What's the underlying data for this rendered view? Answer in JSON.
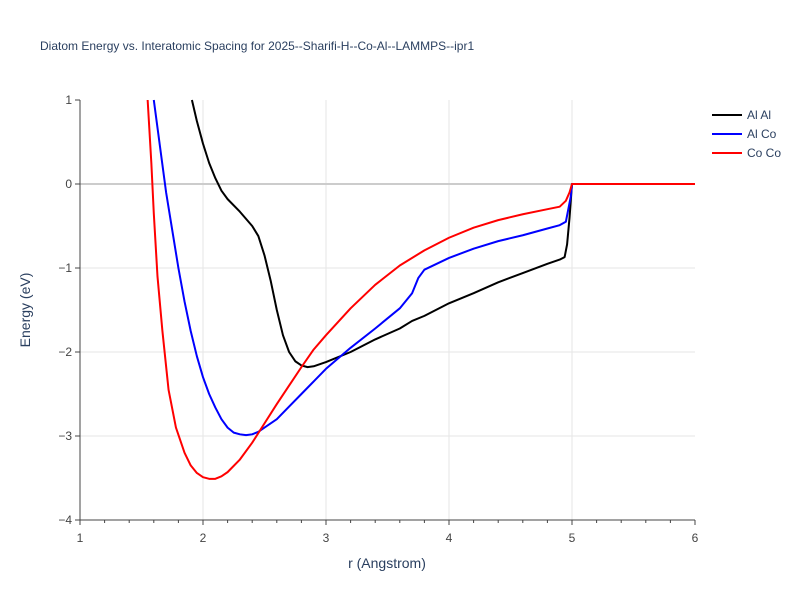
{
  "chart_data": {
    "type": "line",
    "title": "Diatom Energy vs. Interatomic Spacing for 2025--Sharifi-H--Co-Al--LAMMPS--ipr1",
    "xlabel": "r (Angstrom)",
    "ylabel": "Energy (eV)",
    "xlim": [
      1,
      6
    ],
    "ylim": [
      -4,
      1
    ],
    "x_ticks": [
      "1",
      "2",
      "3",
      "4",
      "5",
      "6"
    ],
    "y_ticks": [
      "1",
      "0",
      "−1",
      "−2",
      "−3",
      "−4"
    ],
    "grid": true,
    "legend_position": "top-right",
    "series": [
      {
        "name": "Al Al",
        "color": "#000000",
        "points": [
          [
            1.91,
            1.0
          ],
          [
            1.95,
            0.75
          ],
          [
            2.0,
            0.48
          ],
          [
            2.05,
            0.25
          ],
          [
            2.1,
            0.07
          ],
          [
            2.15,
            -0.08
          ],
          [
            2.2,
            -0.18
          ],
          [
            2.3,
            -0.33
          ],
          [
            2.4,
            -0.5
          ],
          [
            2.45,
            -0.62
          ],
          [
            2.5,
            -0.85
          ],
          [
            2.55,
            -1.15
          ],
          [
            2.6,
            -1.5
          ],
          [
            2.65,
            -1.8
          ],
          [
            2.7,
            -2.0
          ],
          [
            2.75,
            -2.11
          ],
          [
            2.8,
            -2.16
          ],
          [
            2.85,
            -2.18
          ],
          [
            2.9,
            -2.17
          ],
          [
            3.0,
            -2.12
          ],
          [
            3.2,
            -2.0
          ],
          [
            3.4,
            -1.85
          ],
          [
            3.6,
            -1.72
          ],
          [
            3.7,
            -1.63
          ],
          [
            3.8,
            -1.57
          ],
          [
            4.0,
            -1.42
          ],
          [
            4.2,
            -1.3
          ],
          [
            4.4,
            -1.17
          ],
          [
            4.6,
            -1.06
          ],
          [
            4.8,
            -0.95
          ],
          [
            4.9,
            -0.9
          ],
          [
            4.94,
            -0.87
          ],
          [
            4.96,
            -0.72
          ],
          [
            4.98,
            -0.4
          ],
          [
            4.99,
            -0.2
          ],
          [
            5.0,
            0.0
          ],
          [
            6.0,
            0.0
          ]
        ]
      },
      {
        "name": "Al Co",
        "color": "#0000ff",
        "points": [
          [
            1.6,
            1.0
          ],
          [
            1.65,
            0.45
          ],
          [
            1.7,
            -0.1
          ],
          [
            1.75,
            -0.55
          ],
          [
            1.8,
            -1.0
          ],
          [
            1.85,
            -1.4
          ],
          [
            1.9,
            -1.75
          ],
          [
            1.95,
            -2.05
          ],
          [
            2.0,
            -2.3
          ],
          [
            2.05,
            -2.5
          ],
          [
            2.1,
            -2.66
          ],
          [
            2.15,
            -2.8
          ],
          [
            2.2,
            -2.9
          ],
          [
            2.25,
            -2.96
          ],
          [
            2.3,
            -2.98
          ],
          [
            2.35,
            -2.99
          ],
          [
            2.4,
            -2.98
          ],
          [
            2.45,
            -2.95
          ],
          [
            2.5,
            -2.9
          ],
          [
            2.6,
            -2.8
          ],
          [
            2.7,
            -2.65
          ],
          [
            2.8,
            -2.5
          ],
          [
            2.9,
            -2.35
          ],
          [
            3.0,
            -2.2
          ],
          [
            3.2,
            -1.95
          ],
          [
            3.4,
            -1.72
          ],
          [
            3.6,
            -1.48
          ],
          [
            3.7,
            -1.3
          ],
          [
            3.75,
            -1.12
          ],
          [
            3.8,
            -1.02
          ],
          [
            4.0,
            -0.88
          ],
          [
            4.2,
            -0.77
          ],
          [
            4.4,
            -0.68
          ],
          [
            4.6,
            -0.61
          ],
          [
            4.8,
            -0.53
          ],
          [
            4.9,
            -0.49
          ],
          [
            4.95,
            -0.45
          ],
          [
            4.97,
            -0.3
          ],
          [
            4.99,
            -0.15
          ],
          [
            5.0,
            0.0
          ],
          [
            6.0,
            0.0
          ]
        ]
      },
      {
        "name": "Co Co",
        "color": "#ff0000",
        "points": [
          [
            1.55,
            1.0
          ],
          [
            1.58,
            0.25
          ],
          [
            1.6,
            -0.35
          ],
          [
            1.63,
            -1.1
          ],
          [
            1.67,
            -1.75
          ],
          [
            1.72,
            -2.45
          ],
          [
            1.78,
            -2.9
          ],
          [
            1.85,
            -3.2
          ],
          [
            1.9,
            -3.35
          ],
          [
            1.95,
            -3.44
          ],
          [
            2.0,
            -3.49
          ],
          [
            2.05,
            -3.51
          ],
          [
            2.1,
            -3.51
          ],
          [
            2.15,
            -3.48
          ],
          [
            2.2,
            -3.43
          ],
          [
            2.3,
            -3.28
          ],
          [
            2.4,
            -3.08
          ],
          [
            2.5,
            -2.85
          ],
          [
            2.6,
            -2.62
          ],
          [
            2.7,
            -2.4
          ],
          [
            2.8,
            -2.18
          ],
          [
            2.9,
            -1.97
          ],
          [
            3.0,
            -1.8
          ],
          [
            3.2,
            -1.48
          ],
          [
            3.4,
            -1.2
          ],
          [
            3.6,
            -0.97
          ],
          [
            3.8,
            -0.79
          ],
          [
            4.0,
            -0.64
          ],
          [
            4.2,
            -0.52
          ],
          [
            4.4,
            -0.43
          ],
          [
            4.6,
            -0.36
          ],
          [
            4.8,
            -0.3
          ],
          [
            4.9,
            -0.27
          ],
          [
            4.95,
            -0.2
          ],
          [
            4.98,
            -0.1
          ],
          [
            5.0,
            0.0
          ],
          [
            6.0,
            0.0
          ]
        ]
      }
    ]
  }
}
